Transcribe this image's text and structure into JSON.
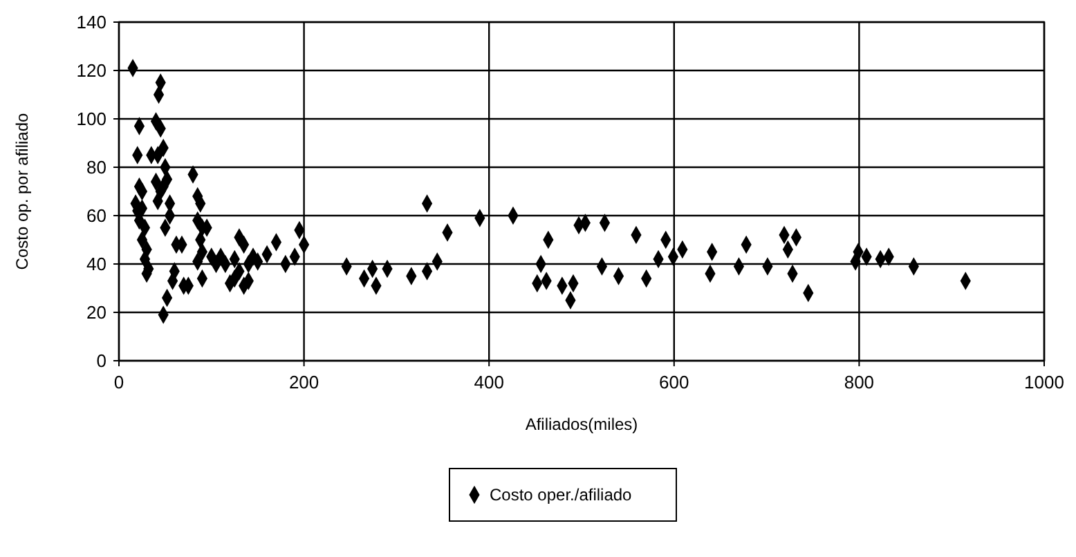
{
  "chart_data": {
    "type": "scatter",
    "xlabel": "Afiliados(miles)",
    "ylabel": "Costo op. por afiliado",
    "xlim": [
      0,
      1000
    ],
    "ylim": [
      0,
      140
    ],
    "xticks": [
      0,
      200,
      400,
      600,
      800,
      1000
    ],
    "yticks": [
      0,
      20,
      40,
      60,
      80,
      100,
      120,
      140
    ],
    "grid": true,
    "legend": "bottom",
    "marker": "diamond",
    "series": [
      {
        "name": "Costo oper./afiliado",
        "color": "#000000",
        "x": [
          15,
          22,
          20,
          22,
          18,
          20,
          25,
          25,
          22,
          28,
          25,
          30,
          28,
          32,
          30,
          35,
          40,
          43,
          45,
          45,
          42,
          48,
          50,
          52,
          48,
          45,
          42,
          40,
          55,
          55,
          50,
          62,
          60,
          58,
          52,
          48,
          70,
          68,
          80,
          85,
          88,
          85,
          90,
          88,
          95,
          90,
          85,
          90,
          75,
          100,
          110,
          115,
          120,
          125,
          130,
          135,
          130,
          135,
          140,
          145,
          150,
          160,
          170,
          180,
          190,
          195,
          200,
          105,
          125,
          140,
          246,
          265,
          274,
          278,
          290,
          316,
          333,
          333,
          344,
          355,
          390,
          426,
          456,
          452,
          462,
          464,
          479,
          491,
          488,
          497,
          504,
          525,
          522,
          540,
          559,
          570,
          583,
          591,
          599,
          609,
          641,
          639,
          670,
          678,
          701,
          719,
          732,
          723,
          728,
          745,
          799,
          796,
          808,
          823,
          832,
          859,
          915
        ],
        "values": [
          121,
          97,
          85,
          72,
          65,
          62,
          70,
          63,
          58,
          55,
          50,
          46,
          42,
          38,
          36,
          85,
          99,
          110,
          115,
          96,
          85,
          88,
          80,
          75,
          72,
          70,
          66,
          74,
          60,
          65,
          55,
          48,
          37,
          33,
          26,
          19,
          31,
          48,
          77,
          68,
          65,
          58,
          55,
          50,
          55,
          45,
          41,
          34,
          31,
          43,
          43,
          40,
          32,
          42,
          51,
          48,
          37,
          31,
          40,
          43,
          41,
          44,
          49,
          40,
          43,
          54,
          48,
          40,
          34,
          33,
          39,
          34,
          38,
          31,
          38,
          35,
          65,
          37,
          41,
          53,
          59,
          60,
          40,
          32,
          33,
          50,
          31,
          32,
          25,
          56,
          57,
          57,
          39,
          35,
          52,
          34,
          42,
          50,
          43,
          46,
          45,
          36,
          39,
          48,
          39,
          52,
          51,
          46,
          36,
          28,
          45,
          41,
          43,
          42,
          43,
          39,
          33
        ]
      }
    ]
  }
}
